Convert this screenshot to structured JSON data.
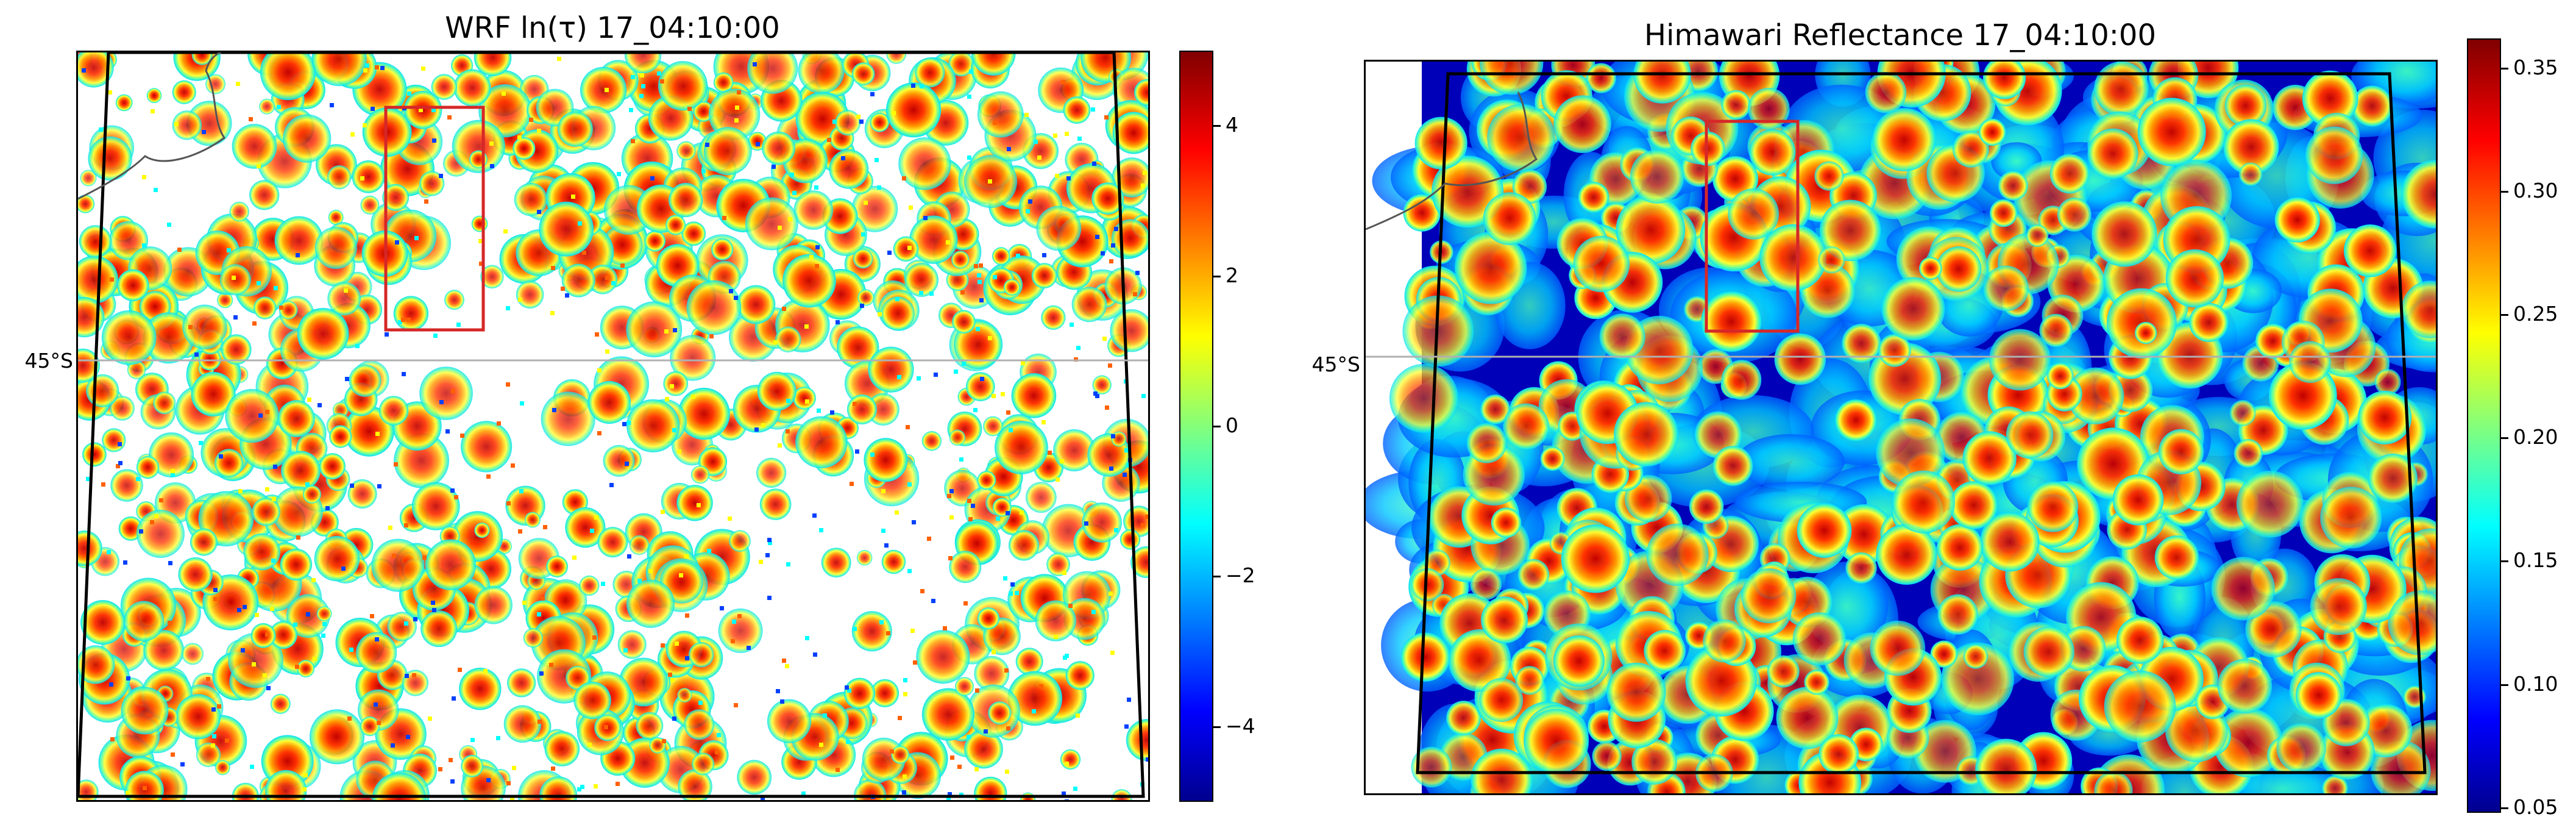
{
  "figure": {
    "left_panel": {
      "title": "WRF ln(τ) 17_04:10:00",
      "lat_label": "45°S",
      "colorbar": {
        "colormap": "jet",
        "range": [
          -5,
          5
        ],
        "ticks": [
          "4",
          "2",
          "0",
          "−2",
          "−4"
        ],
        "tick_values": [
          4,
          2,
          0,
          -2,
          -4
        ]
      }
    },
    "right_panel": {
      "title": "Himawari Reflectance 17_04:10:00",
      "lat_label": "45°S",
      "colorbar": {
        "colormap": "jet",
        "range": [
          0.048,
          0.362
        ],
        "ticks": [
          "0.35",
          "0.30",
          "0.25",
          "0.20",
          "0.15",
          "0.10",
          "0.05"
        ],
        "tick_values": [
          0.35,
          0.3,
          0.25,
          0.2,
          0.15,
          0.1,
          0.05
        ]
      }
    },
    "colors": {
      "highlight_box": "#d62728",
      "domain_outline": "#000000",
      "coastline": "#555555",
      "gridline": "#b0b0b0",
      "clear_sky_left": "#ffffff",
      "clear_sky_right": "#00008f"
    }
  }
}
